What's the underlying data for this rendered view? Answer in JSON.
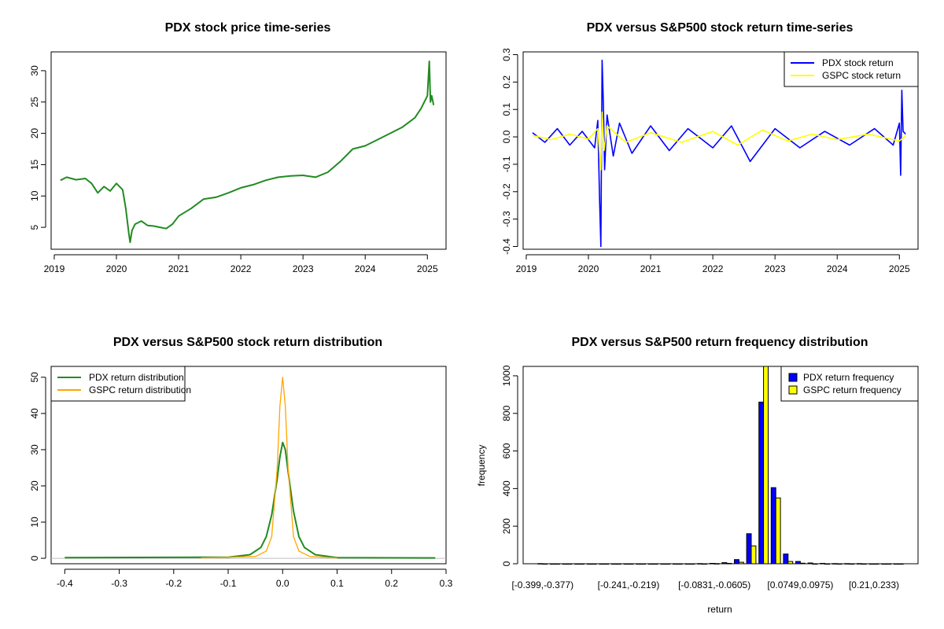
{
  "colors": {
    "pdx_price": "#228B22",
    "pdx_return": "#0000FF",
    "gspc_return": "#FFFF00",
    "pdx_density": "#228B22",
    "gspc_density": "#FFA500",
    "pdx_hist": "#0000FF",
    "gspc_hist": "#FFFF00"
  },
  "chart_data": [
    {
      "id": "price",
      "type": "line",
      "title": "PDX stock price time-series",
      "xlabel": "",
      "ylabel": "",
      "xlim": [
        2018.95,
        2025.3
      ],
      "ylim": [
        1.5,
        33
      ],
      "xticks": [
        2019,
        2020,
        2021,
        2022,
        2023,
        2024,
        2025
      ],
      "xtick_labels": [
        "2019",
        "2020",
        "2021",
        "2022",
        "2023",
        "2024",
        "2025"
      ],
      "yticks": [
        5,
        10,
        15,
        20,
        25,
        30
      ],
      "ytick_labels": [
        "5",
        "10",
        "15",
        "20",
        "25",
        "30"
      ],
      "series": [
        {
          "name": "PDX price",
          "color_key": "pdx_price",
          "x": [
            2019.1,
            2019.2,
            2019.35,
            2019.5,
            2019.6,
            2019.7,
            2019.8,
            2019.9,
            2020.0,
            2020.1,
            2020.15,
            2020.2,
            2020.22,
            2020.25,
            2020.3,
            2020.4,
            2020.5,
            2020.6,
            2020.7,
            2020.8,
            2020.9,
            2021.0,
            2021.2,
            2021.4,
            2021.6,
            2021.8,
            2022.0,
            2022.2,
            2022.4,
            2022.6,
            2022.8,
            2023.0,
            2023.2,
            2023.4,
            2023.6,
            2023.8,
            2024.0,
            2024.2,
            2024.4,
            2024.6,
            2024.8,
            2024.9,
            2025.0,
            2025.03,
            2025.05,
            2025.07,
            2025.1
          ],
          "y": [
            12.5,
            13.0,
            12.6,
            12.8,
            12.0,
            10.5,
            11.5,
            10.8,
            12.0,
            11.0,
            8.0,
            4.0,
            2.6,
            4.5,
            5.5,
            6.0,
            5.3,
            5.2,
            5.0,
            4.8,
            5.5,
            6.8,
            8.0,
            9.5,
            9.8,
            10.5,
            11.3,
            11.8,
            12.5,
            13.0,
            13.2,
            13.3,
            13.0,
            13.8,
            15.5,
            17.5,
            18.0,
            19.0,
            20.0,
            21.0,
            22.5,
            24.0,
            26.0,
            31.5,
            25.0,
            26.0,
            24.5
          ]
        }
      ]
    },
    {
      "id": "returns",
      "type": "line",
      "title": "PDX versus S&P500 stock return time-series",
      "xlabel": "",
      "ylabel": "",
      "xlim": [
        2018.95,
        2025.3
      ],
      "ylim": [
        -0.41,
        0.31
      ],
      "xticks": [
        2019,
        2020,
        2021,
        2022,
        2023,
        2024,
        2025
      ],
      "xtick_labels": [
        "2019",
        "2020",
        "2021",
        "2022",
        "2023",
        "2024",
        "2025"
      ],
      "yticks": [
        -0.4,
        -0.3,
        -0.2,
        -0.1,
        0.0,
        0.1,
        0.2,
        0.3
      ],
      "ytick_labels": [
        "-0.4",
        "-0.3",
        "-0.2",
        "-0.1",
        "0.0",
        "0.1",
        "0.2",
        "0.3"
      ],
      "legend": {
        "position": "top-right",
        "entries": [
          "PDX stock return",
          "GSPC stock return"
        ]
      },
      "series": [
        {
          "name": "PDX stock return",
          "color_key": "pdx_return",
          "x": [
            2019.1,
            2019.3,
            2019.5,
            2019.7,
            2019.9,
            2020.1,
            2020.15,
            2020.18,
            2020.2,
            2020.22,
            2020.24,
            2020.26,
            2020.3,
            2020.4,
            2020.5,
            2020.7,
            2021.0,
            2021.3,
            2021.6,
            2022.0,
            2022.3,
            2022.6,
            2023.0,
            2023.4,
            2023.8,
            2024.2,
            2024.6,
            2024.9,
            2025.0,
            2025.02,
            2025.04,
            2025.06,
            2025.1
          ],
          "y": [
            0.015,
            -0.02,
            0.03,
            -0.03,
            0.02,
            -0.04,
            0.06,
            -0.23,
            -0.4,
            0.28,
            0.12,
            -0.12,
            0.08,
            -0.07,
            0.05,
            -0.06,
            0.04,
            -0.05,
            0.03,
            -0.04,
            0.04,
            -0.09,
            0.03,
            -0.04,
            0.02,
            -0.03,
            0.03,
            -0.03,
            0.05,
            -0.14,
            0.17,
            0.02,
            0.01
          ]
        },
        {
          "name": "GSPC stock return",
          "color_key": "gspc_return",
          "x": [
            2019.1,
            2019.4,
            2019.7,
            2020.0,
            2020.15,
            2020.2,
            2020.22,
            2020.25,
            2020.3,
            2020.6,
            2021.0,
            2021.5,
            2022.0,
            2022.4,
            2022.8,
            2023.2,
            2023.6,
            2024.0,
            2024.5,
            2025.0,
            2025.1
          ],
          "y": [
            0.005,
            -0.01,
            0.01,
            -0.008,
            0.03,
            -0.12,
            0.09,
            -0.05,
            0.04,
            -0.02,
            0.015,
            -0.02,
            0.02,
            -0.03,
            0.025,
            -0.015,
            0.01,
            -0.01,
            0.01,
            -0.015,
            0.005
          ]
        }
      ]
    },
    {
      "id": "density",
      "type": "line",
      "title": "PDX versus S&P500 stock return distribution",
      "xlabel": "",
      "ylabel": "",
      "xlim": [
        -0.425,
        0.3
      ],
      "ylim": [
        -1.5,
        53
      ],
      "xticks": [
        -0.4,
        -0.3,
        -0.2,
        -0.1,
        0.0,
        0.1,
        0.2,
        0.3
      ],
      "xtick_labels": [
        "-0.4",
        "-0.3",
        "-0.2",
        "-0.1",
        "0.0",
        "0.1",
        "0.2",
        "0.3"
      ],
      "yticks": [
        0,
        10,
        20,
        30,
        40,
        50
      ],
      "ytick_labels": [
        "0",
        "10",
        "20",
        "30",
        "40",
        "50"
      ],
      "baseline": 0,
      "legend": {
        "position": "top-left",
        "entries": [
          "PDX return distribution",
          "GSPC return distribution"
        ]
      },
      "series": [
        {
          "name": "PDX return distribution",
          "color_key": "pdx_density",
          "x": [
            -0.4,
            -0.1,
            -0.06,
            -0.04,
            -0.03,
            -0.02,
            -0.01,
            -0.005,
            0.0,
            0.005,
            0.01,
            0.02,
            0.03,
            0.04,
            0.06,
            0.1,
            0.28
          ],
          "y": [
            0.2,
            0.3,
            1.0,
            3.0,
            6.0,
            12.0,
            22.0,
            28.0,
            32.0,
            30.0,
            24.0,
            13.0,
            6.0,
            3.0,
            1.0,
            0.2,
            0.1
          ]
        },
        {
          "name": "GSPC return distribution",
          "color_key": "gspc_density",
          "x": [
            -0.15,
            -0.05,
            -0.03,
            -0.02,
            -0.01,
            -0.005,
            0.0,
            0.005,
            0.01,
            0.02,
            0.03,
            0.05,
            0.1
          ],
          "y": [
            0.1,
            0.5,
            2.0,
            6.0,
            25.0,
            42.0,
            50.0,
            42.0,
            25.0,
            6.0,
            2.0,
            0.5,
            0.1
          ]
        }
      ]
    },
    {
      "id": "histogram",
      "type": "bar",
      "title": "PDX versus S&P500 return frequency distribution",
      "xlabel": "return",
      "ylabel": "frequency",
      "ylim": [
        0,
        1050
      ],
      "yticks": [
        0,
        200,
        400,
        600,
        800,
        1000
      ],
      "ytick_labels": [
        "0",
        "200",
        "400",
        "600",
        "800",
        "1000"
      ],
      "xtick_labels": [
        "[-0.399,-0.377)",
        "[-0.241,-0.219)",
        "[-0.0831,-0.0605)",
        "[0.0749,0.0975)",
        "[0.21,0.233)"
      ],
      "xtick_bins": [
        0,
        7,
        14,
        21,
        27
      ],
      "legend": {
        "position": "top-right",
        "entries": [
          "PDX return frequency",
          "GSPC return frequency"
        ]
      },
      "series": [
        {
          "name": "PDX return frequency",
          "color_key": "pdx_hist",
          "values": [
            1,
            0,
            0,
            0,
            0,
            0,
            0,
            0,
            0,
            0,
            0,
            0,
            0,
            1,
            2,
            6,
            22,
            160,
            860,
            405,
            52,
            12,
            4,
            2,
            1,
            1,
            1,
            0,
            0,
            0
          ]
        },
        {
          "name": "GSPC return frequency",
          "color_key": "gspc_hist",
          "values": [
            0,
            0,
            0,
            0,
            0,
            0,
            0,
            0,
            0,
            0,
            0,
            0,
            0,
            0,
            1,
            2,
            8,
            95,
            1050,
            350,
            12,
            3,
            0,
            0,
            0,
            0,
            0,
            0,
            0,
            0
          ]
        }
      ]
    }
  ]
}
